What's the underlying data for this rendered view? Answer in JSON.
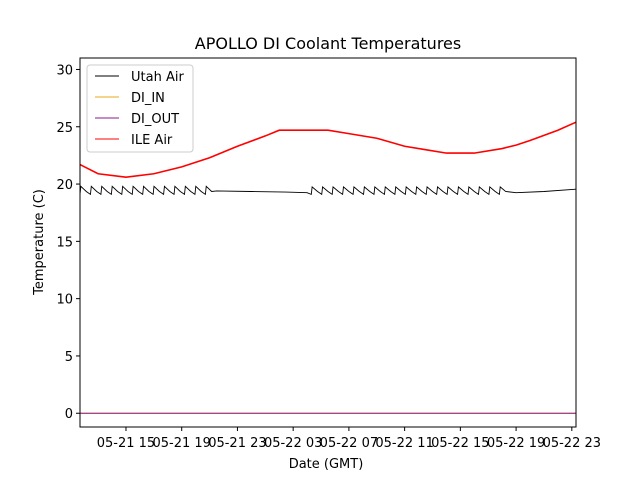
{
  "chart_data": {
    "type": "line",
    "title": "APOLLO DI Coolant Temperatures",
    "xlabel": "Date (GMT)",
    "ylabel": "Temperature (C)",
    "xlim_hours": [
      11.7,
      47.3
    ],
    "ylim": [
      -1.2,
      31
    ],
    "x_ticks": [
      {
        "hour": 15,
        "label": "05-21 15"
      },
      {
        "hour": 19,
        "label": "05-21 19"
      },
      {
        "hour": 23,
        "label": "05-21 23"
      },
      {
        "hour": 27,
        "label": "05-22 03"
      },
      {
        "hour": 31,
        "label": "05-22 07"
      },
      {
        "hour": 35,
        "label": "05-22 11"
      },
      {
        "hour": 39,
        "label": "05-22 15"
      },
      {
        "hour": 43,
        "label": "05-22 19"
      },
      {
        "hour": 47,
        "label": "05-22 23"
      }
    ],
    "y_ticks": [
      {
        "value": 0,
        "label": "0"
      },
      {
        "value": 5,
        "label": "5"
      },
      {
        "value": 10,
        "label": "10"
      },
      {
        "value": 15,
        "label": "15"
      },
      {
        "value": 20,
        "label": "20"
      },
      {
        "value": 25,
        "label": "25"
      },
      {
        "value": 30,
        "label": "30"
      }
    ],
    "legend_position": "top-left",
    "series": [
      {
        "name": "Utah Air",
        "color": "#000000",
        "sawtooth": {
          "low": 19.1,
          "high": 19.8,
          "period_hours": 0.75,
          "from_hour": 11.7,
          "to_hour": 21.3
        },
        "points": [
          [
            21.5,
            19.4
          ],
          [
            24,
            19.35
          ],
          [
            26.5,
            19.3
          ],
          [
            28,
            19.25
          ],
          [
            30,
            19.3
          ],
          [
            33,
            19.3
          ],
          [
            36,
            19.3
          ],
          [
            39.5,
            19.3
          ],
          [
            41,
            19.3
          ],
          [
            43,
            19.25
          ],
          [
            45,
            19.35
          ],
          [
            47.3,
            19.55
          ]
        ],
        "sawtooth_later": {
          "low": 19.1,
          "high": 19.75,
          "period_hours": 0.75,
          "from_hour": 28.3,
          "to_hour": 42.3
        }
      },
      {
        "name": "DI_IN",
        "color": "#e6a817",
        "points": [
          [
            11.7,
            0
          ],
          [
            47.3,
            0
          ]
        ]
      },
      {
        "name": "DI_OUT",
        "color": "#8b1a8b",
        "points": [
          [
            11.7,
            0
          ],
          [
            47.3,
            0
          ]
        ]
      },
      {
        "name": "ILE Air",
        "color": "#ff0000",
        "points": [
          [
            11.7,
            21.7
          ],
          [
            13,
            20.9
          ],
          [
            15,
            20.6
          ],
          [
            17,
            20.9
          ],
          [
            19,
            21.5
          ],
          [
            21,
            22.3
          ],
          [
            23,
            23.3
          ],
          [
            25,
            24.2
          ],
          [
            26,
            24.7
          ],
          [
            28,
            24.7
          ],
          [
            29.5,
            24.7
          ],
          [
            31,
            24.4
          ],
          [
            33,
            24.0
          ],
          [
            35,
            23.3
          ],
          [
            36.5,
            23.0
          ],
          [
            38,
            22.7
          ],
          [
            40,
            22.7
          ],
          [
            42,
            23.1
          ],
          [
            43,
            23.4
          ],
          [
            44,
            23.8
          ],
          [
            46,
            24.7
          ],
          [
            47.3,
            25.4
          ]
        ]
      }
    ]
  }
}
